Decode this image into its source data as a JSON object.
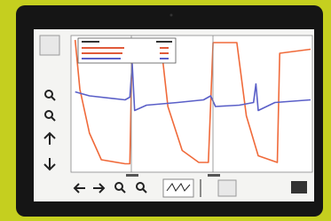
{
  "chart_data": {
    "type": "line",
    "xlim": [
      0,
      100
    ],
    "ylim": [
      0,
      100
    ],
    "series": [
      {
        "color": "#f06a3a",
        "x": [
          1,
          3,
          7,
          12,
          22,
          24,
          25,
          37,
          40,
          46,
          53,
          57,
          59,
          69,
          73,
          78,
          86,
          87,
          100
        ],
        "values": [
          98,
          61,
          28,
          8,
          5,
          5,
          96,
          96,
          48,
          15,
          6,
          6,
          96,
          96,
          41,
          11,
          6,
          88,
          91
        ]
      },
      {
        "color": "#5a5fc8",
        "x": [
          1,
          7,
          22,
          24,
          25,
          26,
          31,
          44,
          55,
          58,
          60,
          70,
          76,
          77,
          78,
          85,
          100
        ],
        "values": [
          59,
          56,
          53,
          55,
          80,
          45,
          49,
          51,
          53,
          56,
          48,
          49,
          51,
          65,
          45,
          51,
          53
        ]
      }
    ]
  }
}
